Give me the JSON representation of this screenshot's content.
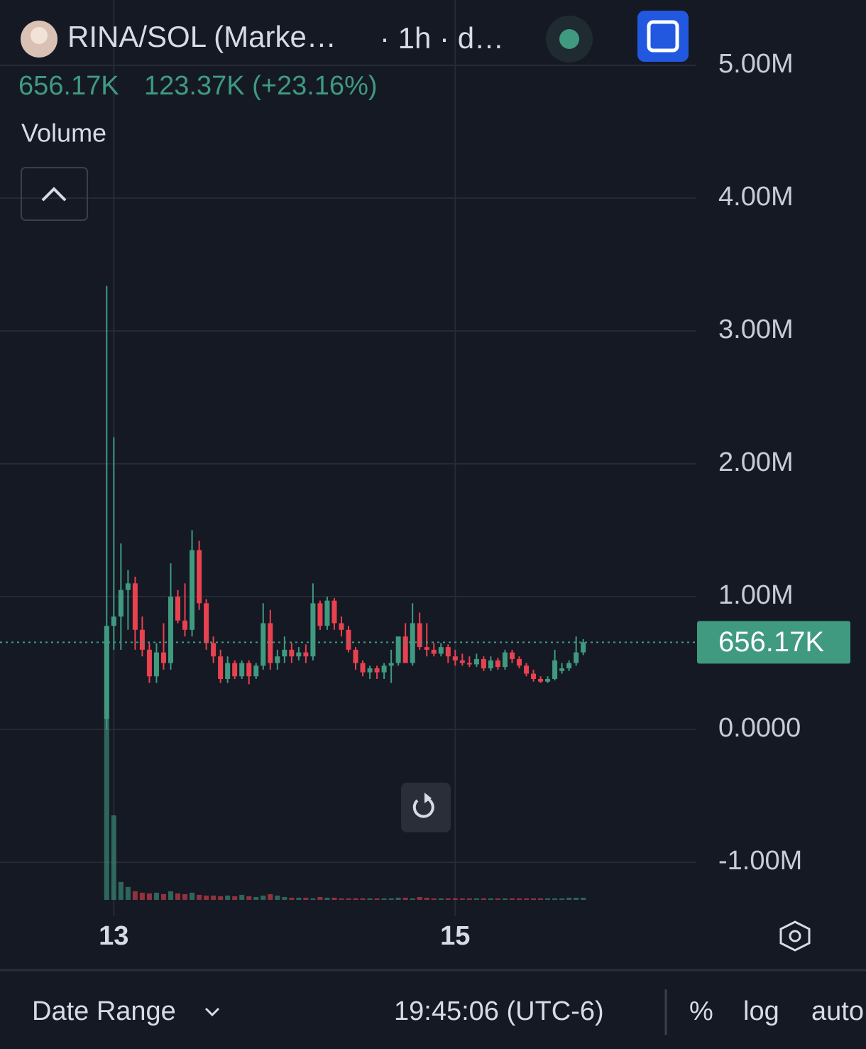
{
  "chart_data": {
    "type": "candlestick",
    "title": "RINA/SOL (Marke…",
    "subtitle": "· 1h · d…",
    "last_value": "656.17K",
    "change": "123.37K (+23.16%)",
    "study": "Volume",
    "up_color": "#3f9a80",
    "down_color": "#e8414f",
    "x": [
      -1,
      0,
      1,
      2,
      3,
      4,
      5,
      6,
      7,
      8,
      9,
      10,
      11,
      12,
      13,
      14,
      15,
      16,
      17,
      18,
      19,
      20,
      21,
      22,
      23,
      24,
      25,
      26,
      27,
      28,
      29,
      30,
      31,
      32,
      33,
      34,
      35,
      36,
      37,
      38,
      39,
      40,
      41,
      42,
      43,
      44,
      45,
      46,
      47,
      48,
      49,
      50,
      51,
      52,
      53,
      54,
      55,
      56,
      57,
      58,
      59,
      60,
      61,
      62,
      63,
      64,
      65,
      66
    ],
    "open": [
      80000,
      780000,
      850000,
      1050000,
      1100000,
      750000,
      600000,
      400000,
      580000,
      500000,
      1000000,
      820000,
      750000,
      1350000,
      950000,
      650000,
      550000,
      380000,
      500000,
      400000,
      500000,
      400000,
      480000,
      800000,
      500000,
      550000,
      600000,
      550000,
      580000,
      550000,
      950000,
      780000,
      970000,
      800000,
      750000,
      600000,
      500000,
      430000,
      460000,
      430000,
      480000,
      500000,
      700000,
      500000,
      800000,
      620000,
      600000,
      570000,
      620000,
      550000,
      520000,
      500000,
      490000,
      530000,
      460000,
      520000,
      470000,
      580000,
      530000,
      480000,
      420000,
      380000,
      360000,
      380000,
      440000,
      460000,
      500000,
      580000
    ],
    "high": [
      3340000,
      2200000,
      1400000,
      1200000,
      1150000,
      850000,
      650000,
      650000,
      800000,
      1250000,
      1050000,
      1100000,
      1500000,
      1420000,
      980000,
      700000,
      600000,
      550000,
      520000,
      520000,
      520000,
      500000,
      950000,
      900000,
      600000,
      700000,
      650000,
      620000,
      640000,
      1100000,
      970000,
      1000000,
      990000,
      850000,
      780000,
      620000,
      520000,
      480000,
      480000,
      500000,
      600000,
      700000,
      800000,
      950000,
      880000,
      800000,
      650000,
      650000,
      640000,
      600000,
      570000,
      550000,
      570000,
      550000,
      550000,
      540000,
      600000,
      600000,
      550000,
      500000,
      450000,
      400000,
      400000,
      600000,
      500000,
      520000,
      700000,
      680000
    ],
    "low": [
      0,
      600000,
      600000,
      750000,
      600000,
      550000,
      350000,
      350000,
      450000,
      450000,
      800000,
      700000,
      700000,
      900000,
      600000,
      500000,
      350000,
      350000,
      380000,
      380000,
      340000,
      380000,
      450000,
      450000,
      450000,
      500000,
      500000,
      520000,
      500000,
      520000,
      750000,
      750000,
      750000,
      700000,
      580000,
      450000,
      400000,
      380000,
      380000,
      380000,
      350000,
      480000,
      500000,
      480000,
      600000,
      550000,
      550000,
      550000,
      500000,
      480000,
      480000,
      470000,
      470000,
      440000,
      440000,
      450000,
      450000,
      500000,
      460000,
      400000,
      360000,
      350000,
      350000,
      370000,
      420000,
      440000,
      480000,
      560000
    ],
    "close": [
      780000,
      850000,
      1050000,
      1100000,
      750000,
      600000,
      400000,
      580000,
      500000,
      1000000,
      820000,
      750000,
      1350000,
      950000,
      650000,
      550000,
      380000,
      500000,
      400000,
      500000,
      400000,
      480000,
      800000,
      500000,
      550000,
      600000,
      550000,
      580000,
      550000,
      950000,
      780000,
      970000,
      800000,
      750000,
      600000,
      500000,
      430000,
      460000,
      430000,
      480000,
      500000,
      700000,
      500000,
      800000,
      620000,
      600000,
      570000,
      620000,
      550000,
      520000,
      500000,
      490000,
      530000,
      460000,
      520000,
      470000,
      580000,
      530000,
      480000,
      420000,
      380000,
      360000,
      380000,
      520000,
      460000,
      500000,
      580000,
      656170
    ],
    "volume": [
      255,
      118,
      25,
      18,
      12,
      10,
      9,
      10,
      8,
      12,
      9,
      8,
      10,
      7,
      6,
      6,
      5,
      6,
      5,
      7,
      5,
      4,
      6,
      8,
      6,
      4,
      3,
      3,
      3,
      2,
      4,
      3,
      3,
      2,
      2,
      2,
      2,
      2,
      2,
      2,
      2,
      3,
      3,
      2,
      4,
      3,
      2,
      2,
      2,
      2,
      2,
      2,
      2,
      2,
      2,
      2,
      2,
      2,
      2,
      2,
      2,
      2,
      2,
      2,
      2,
      3,
      3,
      3
    ],
    "price_line": {
      "value": 656170,
      "label": "656.17K"
    },
    "xlim": [
      -16,
      81.8
    ],
    "ylim": [
      -1406000,
      5492000
    ],
    "xticks": [
      {
        "value": 0,
        "label": "13"
      },
      {
        "value": 48,
        "label": "15"
      }
    ],
    "yticks": [
      {
        "value": 5000000,
        "label": "5.00M"
      },
      {
        "value": 4000000,
        "label": "4.00M"
      },
      {
        "value": 3000000,
        "label": "3.00M"
      },
      {
        "value": 2000000,
        "label": "2.00M"
      },
      {
        "value": 1000000,
        "label": "1.00M"
      },
      {
        "value": 0,
        "label": "0.0000"
      },
      {
        "value": -1000000,
        "label": "-1.00M"
      }
    ],
    "grid": true
  },
  "toolbar": {
    "date_range": "Date Range",
    "time": "19:45:06 (UTC-6)",
    "percent": "%",
    "log": "log",
    "auto": "auto"
  }
}
